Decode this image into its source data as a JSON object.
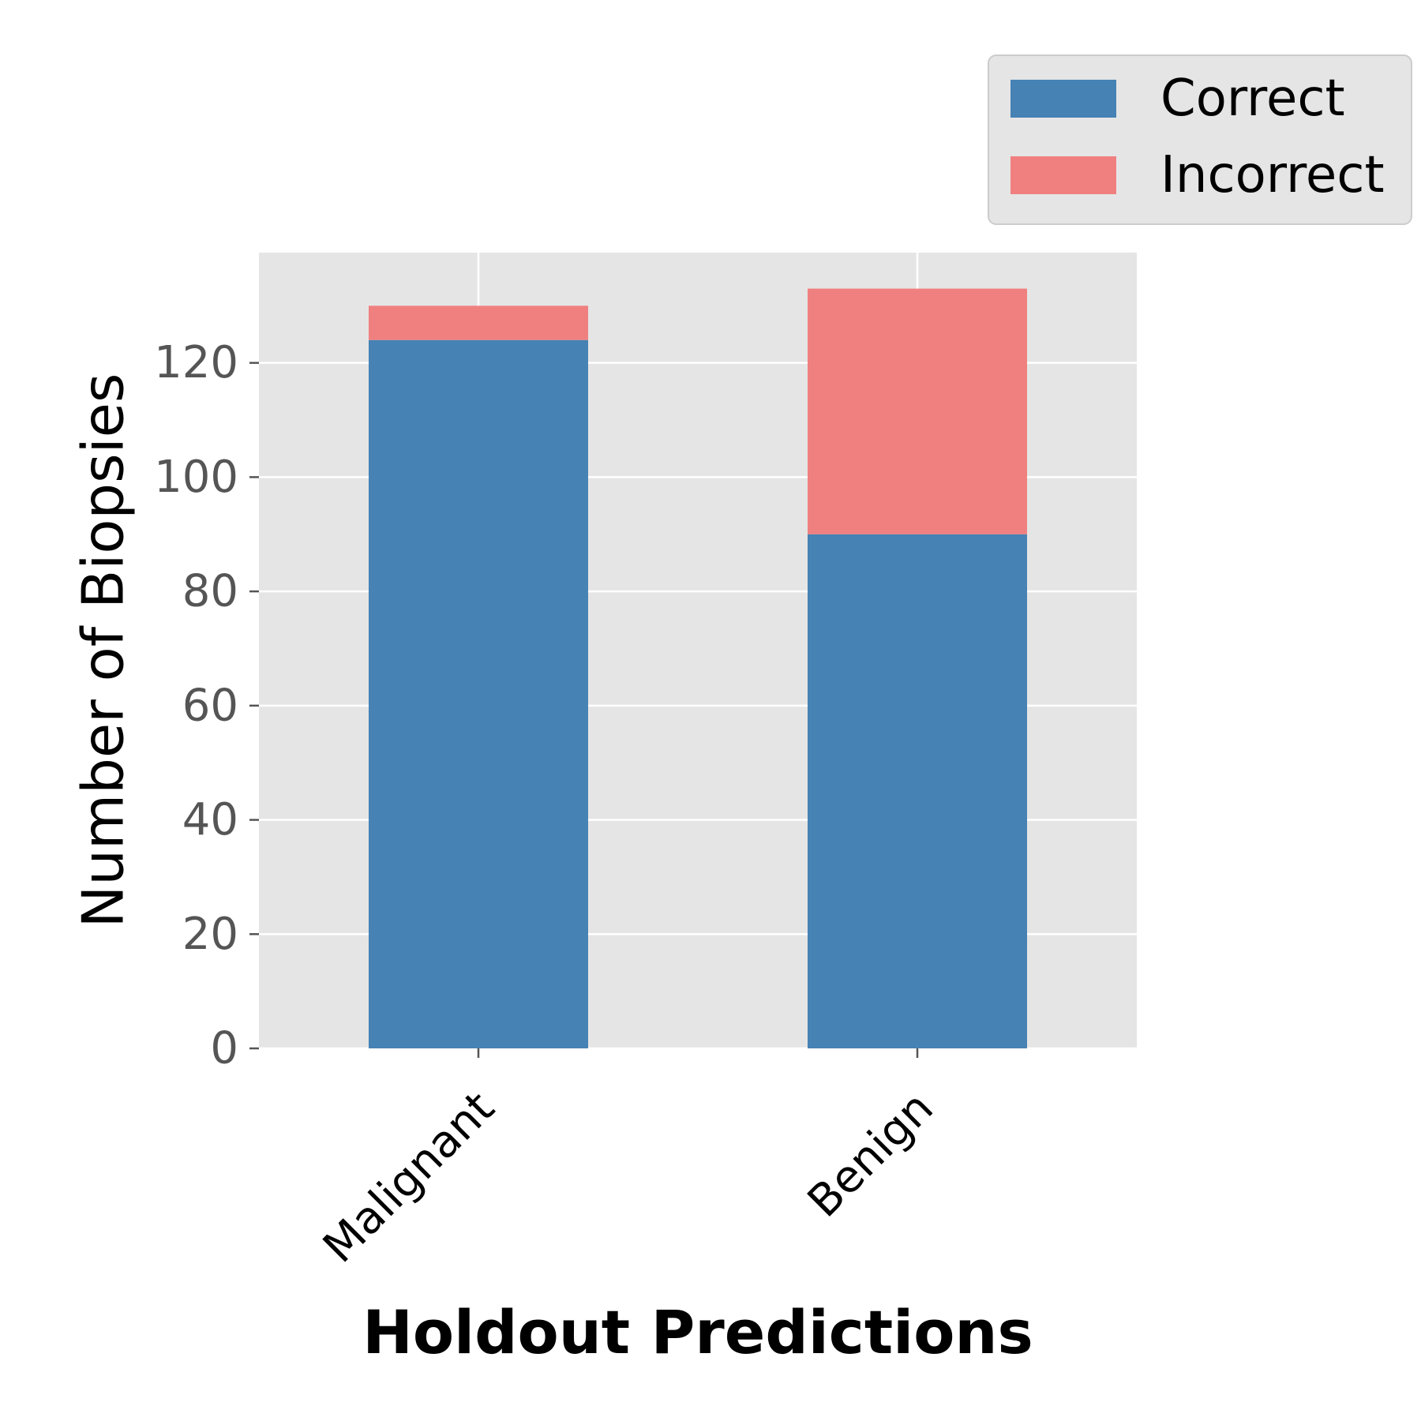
{
  "chart_data": {
    "type": "bar",
    "stacked": true,
    "categories": [
      "Malignant",
      "Benign"
    ],
    "series": [
      {
        "name": "Correct",
        "values": [
          124,
          90
        ],
        "color": "#4682b4"
      },
      {
        "name": "Incorrect",
        "values": [
          6,
          43
        ],
        "color": "#f08080"
      }
    ],
    "xlabel": "Holdout Predictions",
    "ylabel": "Number of Biopsies",
    "ylim": [
      0,
      139.3
    ],
    "yticks": [
      0,
      20,
      40,
      60,
      80,
      100,
      120
    ],
    "grid": true,
    "legend": "top-right, outside plot area",
    "colors": {
      "background": "#e5e5e5",
      "grid": "#ffffff",
      "legend_bg": "#e5e5e5"
    }
  }
}
